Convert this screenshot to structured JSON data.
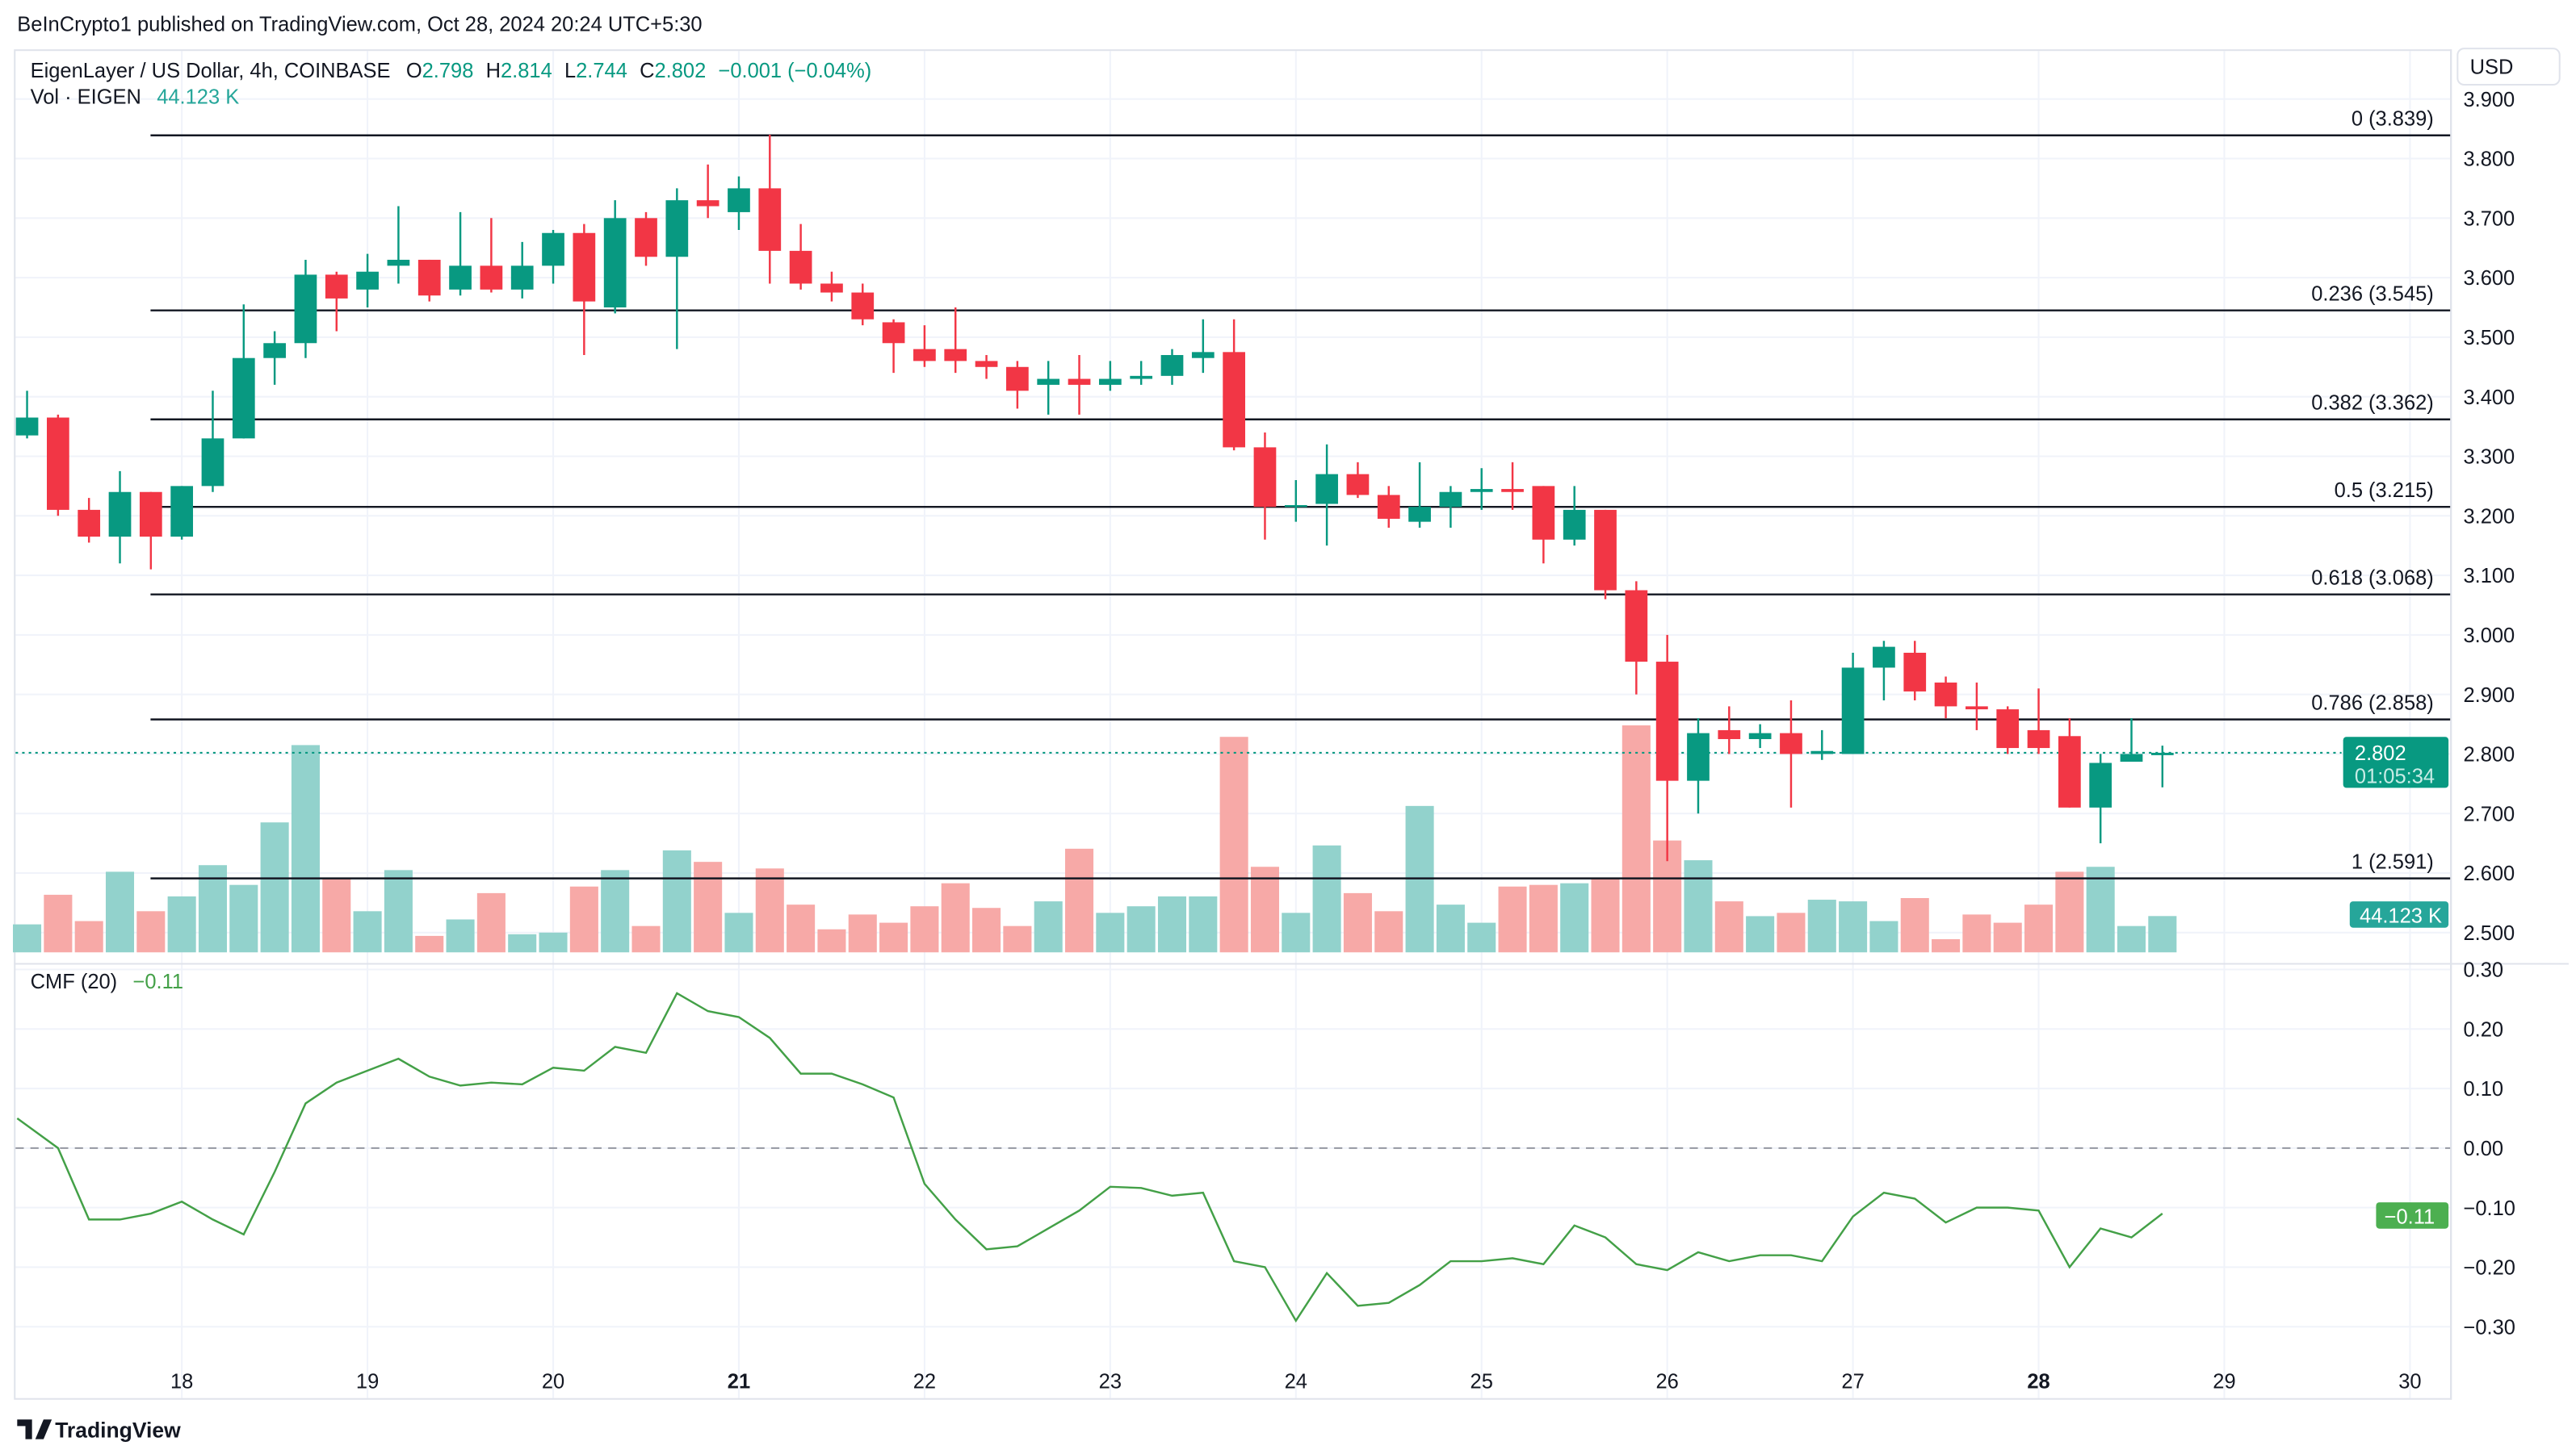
{
  "header": {
    "published": "BeInCrypto1 published on TradingView.com, Oct 28, 2024 20:24 UTC+5:30",
    "symbol": "EigenLayer / US Dollar, 4h, COINBASE",
    "o_label": "O",
    "o": "2.798",
    "h_label": "H",
    "h": "2.814",
    "l_label": "L",
    "l": "2.744",
    "c_label": "C",
    "c": "2.802",
    "change": "−0.001 (−0.04%)",
    "vol_label": "Vol · EIGEN",
    "vol": "44.123 K",
    "currency_button": "USD"
  },
  "cmf": {
    "label": "CMF (20)",
    "value": "−0.11",
    "badge": "−0.11"
  },
  "price_badge": {
    "price": "2.802",
    "countdown": "01:05:34"
  },
  "volume_badge": "44.123 K",
  "footer": {
    "logo_text": "TradingView"
  },
  "colors": {
    "up": "#089981",
    "down": "#f23645",
    "vol_up": "#92d2cc",
    "vol_down": "#f7a9a7",
    "cmf_line": "#43a047",
    "badge_green": "#089981",
    "vol_badge": "#26a69a",
    "cmf_badge": "#4caf50"
  },
  "chart_data": [
    {
      "type": "candlestick",
      "title": "EigenLayer / US Dollar, 4h, COINBASE",
      "ylim": [
        2.47,
        3.92
      ],
      "y_ticks": [
        "2.500",
        "2.600",
        "2.700",
        "2.800",
        "2.900",
        "3.000",
        "3.100",
        "3.200",
        "3.300",
        "3.400",
        "3.500",
        "3.600",
        "3.700",
        "3.800",
        "3.900"
      ],
      "x_ticks": [
        {
          "label": "18",
          "day": 18,
          "bold": false
        },
        {
          "label": "19",
          "day": 19,
          "bold": false
        },
        {
          "label": "20",
          "day": 20,
          "bold": false
        },
        {
          "label": "21",
          "day": 21,
          "bold": true
        },
        {
          "label": "22",
          "day": 22,
          "bold": false
        },
        {
          "label": "23",
          "day": 23,
          "bold": false
        },
        {
          "label": "24",
          "day": 24,
          "bold": false
        },
        {
          "label": "25",
          "day": 25,
          "bold": false
        },
        {
          "label": "26",
          "day": 26,
          "bold": false
        },
        {
          "label": "27",
          "day": 27,
          "bold": false
        },
        {
          "label": "28",
          "day": 28,
          "bold": true
        },
        {
          "label": "29",
          "day": 29,
          "bold": false
        },
        {
          "label": "30",
          "day": 30,
          "bold": false
        }
      ],
      "candles_ohlc": [
        [
          3.335,
          3.41,
          3.33,
          3.365
        ],
        [
          3.365,
          3.37,
          3.2,
          3.21
        ],
        [
          3.21,
          3.23,
          3.155,
          3.165
        ],
        [
          3.165,
          3.275,
          3.12,
          3.24
        ],
        [
          3.24,
          3.24,
          3.11,
          3.165
        ],
        [
          3.165,
          3.25,
          3.16,
          3.25
        ],
        [
          3.25,
          3.41,
          3.24,
          3.33
        ],
        [
          3.33,
          3.555,
          3.33,
          3.465
        ],
        [
          3.465,
          3.51,
          3.42,
          3.49
        ],
        [
          3.49,
          3.63,
          3.465,
          3.605
        ],
        [
          3.605,
          3.61,
          3.51,
          3.565
        ],
        [
          3.58,
          3.64,
          3.55,
          3.61
        ],
        [
          3.62,
          3.72,
          3.59,
          3.63
        ],
        [
          3.63,
          3.63,
          3.56,
          3.57
        ],
        [
          3.58,
          3.71,
          3.57,
          3.62
        ],
        [
          3.62,
          3.7,
          3.575,
          3.58
        ],
        [
          3.58,
          3.66,
          3.565,
          3.62
        ],
        [
          3.62,
          3.68,
          3.59,
          3.675
        ],
        [
          3.675,
          3.69,
          3.47,
          3.56
        ],
        [
          3.55,
          3.73,
          3.54,
          3.7
        ],
        [
          3.7,
          3.71,
          3.62,
          3.635
        ],
        [
          3.635,
          3.75,
          3.48,
          3.73
        ],
        [
          3.73,
          3.79,
          3.7,
          3.72
        ],
        [
          3.71,
          3.77,
          3.68,
          3.75
        ],
        [
          3.75,
          3.84,
          3.59,
          3.645
        ],
        [
          3.645,
          3.69,
          3.58,
          3.59
        ],
        [
          3.59,
          3.61,
          3.56,
          3.575
        ],
        [
          3.575,
          3.59,
          3.52,
          3.53
        ],
        [
          3.525,
          3.53,
          3.44,
          3.49
        ],
        [
          3.48,
          3.52,
          3.45,
          3.46
        ],
        [
          3.48,
          3.55,
          3.44,
          3.46
        ],
        [
          3.46,
          3.47,
          3.43,
          3.45
        ],
        [
          3.45,
          3.46,
          3.38,
          3.41
        ],
        [
          3.42,
          3.46,
          3.37,
          3.43
        ],
        [
          3.43,
          3.47,
          3.37,
          3.42
        ],
        [
          3.42,
          3.46,
          3.41,
          3.43
        ],
        [
          3.43,
          3.46,
          3.42,
          3.435
        ],
        [
          3.435,
          3.48,
          3.42,
          3.47
        ],
        [
          3.465,
          3.53,
          3.44,
          3.475
        ],
        [
          3.475,
          3.53,
          3.31,
          3.315
        ],
        [
          3.315,
          3.34,
          3.16,
          3.215
        ],
        [
          3.215,
          3.26,
          3.19,
          3.218
        ],
        [
          3.22,
          3.32,
          3.15,
          3.27
        ],
        [
          3.27,
          3.29,
          3.23,
          3.235
        ],
        [
          3.235,
          3.25,
          3.18,
          3.195
        ],
        [
          3.19,
          3.29,
          3.18,
          3.215
        ],
        [
          3.215,
          3.25,
          3.18,
          3.24
        ],
        [
          3.24,
          3.28,
          3.21,
          3.245
        ],
        [
          3.245,
          3.29,
          3.21,
          3.24
        ],
        [
          3.25,
          3.25,
          3.12,
          3.16
        ],
        [
          3.16,
          3.25,
          3.15,
          3.21
        ],
        [
          3.21,
          3.21,
          3.06,
          3.075
        ],
        [
          3.075,
          3.09,
          2.9,
          2.955
        ],
        [
          2.955,
          3.0,
          2.62,
          2.755
        ],
        [
          2.755,
          2.86,
          2.7,
          2.835
        ],
        [
          2.84,
          2.88,
          2.8,
          2.825
        ],
        [
          2.825,
          2.85,
          2.81,
          2.835
        ],
        [
          2.835,
          2.89,
          2.71,
          2.8
        ],
        [
          2.8,
          2.84,
          2.79,
          2.805
        ],
        [
          2.8,
          2.97,
          2.8,
          2.945
        ],
        [
          2.945,
          2.99,
          2.89,
          2.98
        ],
        [
          2.97,
          2.99,
          2.89,
          2.905
        ],
        [
          2.92,
          2.93,
          2.86,
          2.88
        ],
        [
          2.88,
          2.92,
          2.84,
          2.875
        ],
        [
          2.875,
          2.88,
          2.8,
          2.81
        ],
        [
          2.84,
          2.91,
          2.8,
          2.81
        ],
        [
          2.83,
          2.86,
          2.71,
          2.71
        ],
        [
          2.71,
          2.8,
          2.65,
          2.785
        ],
        [
          2.787,
          2.86,
          2.79,
          2.8
        ],
        [
          2.798,
          2.814,
          2.744,
          2.802
        ]
      ],
      "volume_k": [
        34,
        70,
        38,
        98,
        50,
        68,
        106,
        82,
        158,
        252,
        90,
        50,
        100,
        20,
        40,
        72,
        22,
        24,
        80,
        100,
        32,
        124,
        110,
        48,
        102,
        58,
        28,
        46,
        36,
        56,
        84,
        54,
        32,
        62,
        126,
        48,
        56,
        68,
        68,
        262,
        104,
        48,
        130,
        72,
        50,
        178,
        58,
        36,
        80,
        82,
        84,
        90,
        276,
        136,
        112,
        62,
        44,
        48,
        64,
        62,
        38,
        66,
        16,
        46,
        36,
        58,
        98,
        104,
        32,
        44.123
      ],
      "fib_levels": [
        {
          "label": "0 (3.839)",
          "value": 3.839
        },
        {
          "label": "0.236 (3.545)",
          "value": 3.545
        },
        {
          "label": "0.382 (3.362)",
          "value": 3.362
        },
        {
          "label": "0.5 (3.215)",
          "value": 3.215
        },
        {
          "label": "0.618 (3.068)",
          "value": 3.068
        },
        {
          "label": "0.786 (2.858)",
          "value": 2.858
        },
        {
          "label": "1 (2.591)",
          "value": 2.591
        }
      ],
      "last_price": 2.802
    },
    {
      "type": "line",
      "title": "CMF (20)",
      "ylim": [
        -0.33,
        0.33
      ],
      "y_ticks": [
        "0.30",
        "0.20",
        "0.10",
        "0.00",
        "−0.10",
        "−0.20",
        "−0.30"
      ],
      "y_tick_values": [
        0.3,
        0.2,
        0.1,
        0,
        -0.1,
        -0.2,
        -0.3
      ],
      "values": [
        0.05,
        0.0,
        -0.12,
        -0.12,
        -0.11,
        -0.09,
        -0.12,
        -0.145,
        -0.04,
        0.075,
        0.11,
        0.13,
        0.15,
        0.12,
        0.105,
        0.11,
        0.107,
        0.135,
        0.13,
        0.17,
        0.16,
        0.26,
        0.23,
        0.22,
        0.185,
        0.125,
        0.125,
        0.107,
        0.085,
        -0.06,
        -0.12,
        -0.17,
        -0.165,
        -0.135,
        -0.105,
        -0.065,
        -0.067,
        -0.08,
        -0.075,
        -0.19,
        -0.2,
        -0.29,
        -0.21,
        -0.265,
        -0.26,
        -0.23,
        -0.19,
        -0.19,
        -0.185,
        -0.195,
        -0.13,
        -0.15,
        -0.195,
        -0.205,
        -0.175,
        -0.19,
        -0.18,
        -0.18,
        -0.19,
        -0.115,
        -0.075,
        -0.085,
        -0.125,
        -0.1,
        -0.1,
        -0.105,
        -0.2,
        -0.135,
        -0.15,
        -0.11
      ]
    }
  ]
}
